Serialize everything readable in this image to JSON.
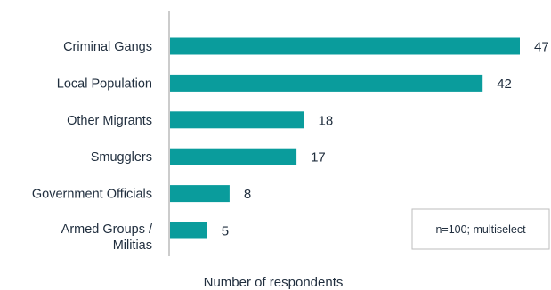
{
  "chart_data": {
    "type": "bar",
    "orientation": "horizontal",
    "categories": [
      "Criminal Gangs",
      "Local Population",
      "Other Migrants",
      "Smugglers",
      "Government Officials",
      "Armed Groups / Militias"
    ],
    "category_lines": [
      [
        "Criminal Gangs"
      ],
      [
        "Local Population"
      ],
      [
        "Other Migrants"
      ],
      [
        "Smugglers"
      ],
      [
        "Government Officials"
      ],
      [
        "Armed Groups /",
        "Militias"
      ]
    ],
    "values": [
      47,
      42,
      18,
      17,
      8,
      5
    ],
    "xlabel": "Number of respondents",
    "xlim": [
      0,
      47
    ],
    "grid": false,
    "bar_color": "#0a9c9c",
    "annotation": "n=100; multiselect"
  }
}
